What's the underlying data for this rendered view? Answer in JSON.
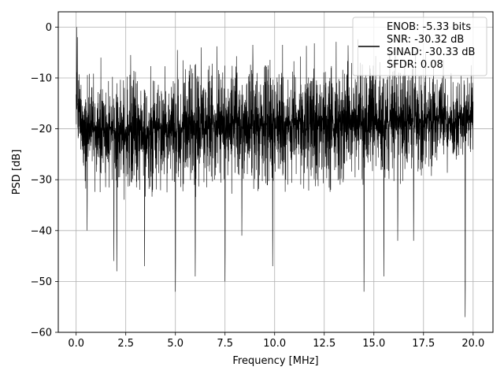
{
  "chart_data": {
    "type": "line",
    "title": "",
    "xlabel": "Frequency [MHz]",
    "ylabel": "PSD [dB]",
    "xlim": [
      -0.9,
      21.0
    ],
    "ylim": [
      -60,
      3
    ],
    "xticks": [
      0.0,
      2.5,
      5.0,
      7.5,
      10.0,
      12.5,
      15.0,
      17.5,
      20.0
    ],
    "xtick_labels": [
      "0.0",
      "2.5",
      "5.0",
      "7.5",
      "10.0",
      "12.5",
      "15.0",
      "17.5",
      "20.0"
    ],
    "yticks": [
      0,
      -10,
      -20,
      -30,
      -40,
      -50,
      -60
    ],
    "ytick_labels": [
      "0",
      "−10",
      "−20",
      "−30",
      "−40",
      "−50",
      "−60"
    ],
    "grid": true,
    "legend_position": "top-right",
    "legend_lines": [
      "ENOB: -5.33 bits",
      "SNR: -30.32 dB",
      "SINAD: -30.33 dB",
      "SFDR: 0.08"
    ],
    "series": [
      {
        "color": "#000000",
        "x_range": [
          0.0,
          20.0
        ],
        "envelope_top": [
          [
            0.0,
            -3
          ],
          [
            0.3,
            -7
          ],
          [
            1.0,
            -8
          ],
          [
            2.5,
            -7
          ],
          [
            5.0,
            -6
          ],
          [
            7.5,
            -5
          ],
          [
            10.0,
            -4.5
          ],
          [
            12.5,
            -5
          ],
          [
            15.0,
            -5
          ],
          [
            17.5,
            -6
          ],
          [
            20.0,
            -8
          ]
        ],
        "envelope_bottom": [
          [
            0.0,
            -26
          ],
          [
            0.5,
            -33
          ],
          [
            2.5,
            -35
          ],
          [
            5.0,
            -34
          ],
          [
            10.0,
            -33
          ],
          [
            15.0,
            -33
          ],
          [
            20.0,
            -28
          ]
        ],
        "deep_dips": [
          [
            0.55,
            -40
          ],
          [
            1.9,
            -46
          ],
          [
            2.05,
            -48
          ],
          [
            3.45,
            -47
          ],
          [
            5.0,
            -52
          ],
          [
            6.0,
            -49
          ],
          [
            7.5,
            -50
          ],
          [
            8.35,
            -41
          ],
          [
            9.9,
            -47
          ],
          [
            14.5,
            -52
          ],
          [
            15.5,
            -49
          ],
          [
            16.2,
            -42
          ],
          [
            17.0,
            -42
          ],
          [
            19.6,
            -57
          ]
        ],
        "peaks": [
          [
            0.02,
            0
          ],
          [
            0.06,
            -2
          ],
          [
            1.25,
            -6
          ],
          [
            2.75,
            -5.5
          ],
          [
            5.1,
            -4.5
          ],
          [
            6.3,
            -4
          ],
          [
            7.1,
            -3.8
          ],
          [
            8.9,
            -3.5
          ],
          [
            10.4,
            -3.5
          ],
          [
            11.6,
            -3.7
          ],
          [
            12.0,
            -3.2
          ],
          [
            13.1,
            -2.9
          ],
          [
            13.7,
            -3.6
          ],
          [
            14.2,
            -2.4
          ],
          [
            15.8,
            -4.5
          ],
          [
            17.1,
            -4.8
          ],
          [
            17.6,
            -5
          ],
          [
            18.5,
            -6.5
          ],
          [
            19.9,
            -7.5
          ]
        ]
      }
    ]
  }
}
